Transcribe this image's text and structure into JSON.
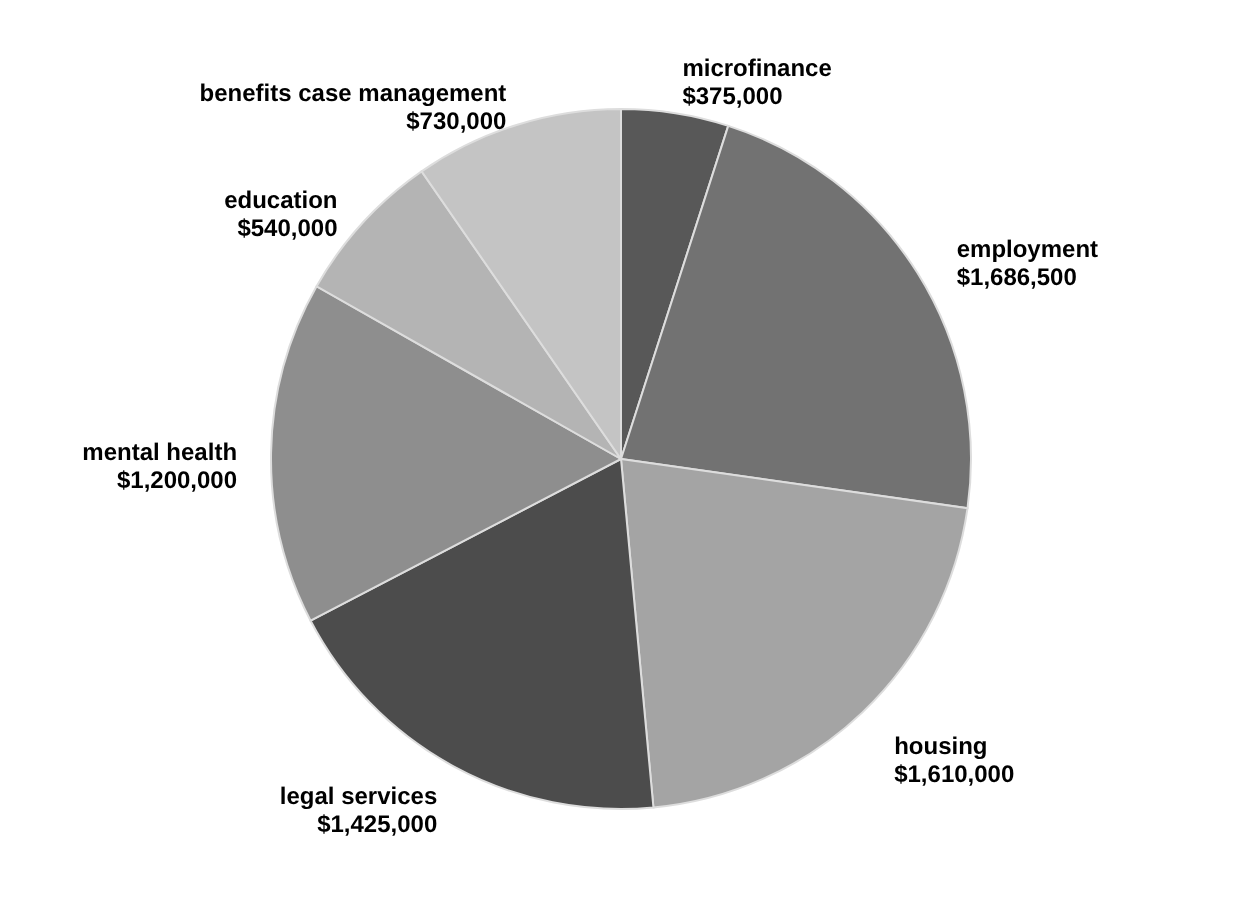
{
  "chart_data": {
    "type": "pie",
    "categories": [
      "microfinance",
      "employment",
      "housing",
      "legal services",
      "mental health",
      "education",
      "benefits case management"
    ],
    "values": [
      375000,
      1686500,
      1610000,
      1425000,
      1200000,
      540000,
      730000
    ],
    "value_labels": [
      "$375,000",
      "$1,686,500",
      "$1,610,000",
      "$1,425,000",
      "$1,200,000",
      "$540,000",
      "$730,000"
    ],
    "colors": [
      "#585858",
      "#727272",
      "#a4a4a4",
      "#4c4c4c",
      "#8e8e8e",
      "#b4b4b4",
      "#c4c4c4"
    ],
    "legend": false
  }
}
